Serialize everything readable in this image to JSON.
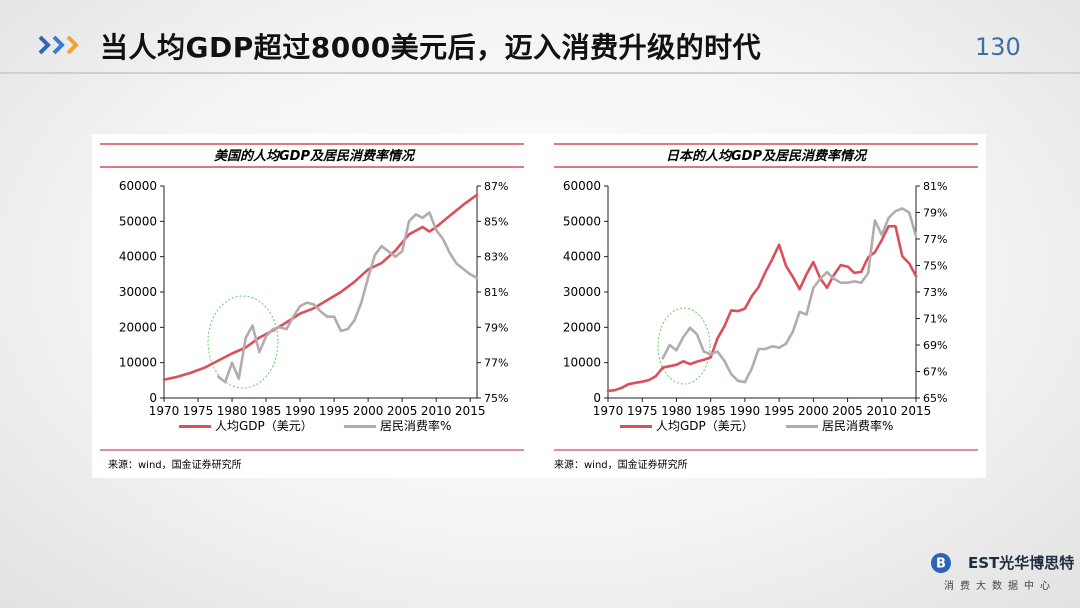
{
  "slide": {
    "title": "当人均GDP超过8000美元后，迈入消费升级的时代",
    "page_number": "130"
  },
  "brand": {
    "logo_text": "EST光华博思特",
    "subtitle": "消费大数据中心",
    "accent_color": "#3d6ea8"
  },
  "chart_data": [
    {
      "type": "line",
      "title": "美国的人均GDP及居民消费率情况",
      "source": "来源：wind，国金证券研究所",
      "x_ticks": [
        "1970",
        "1975",
        "1980",
        "1985",
        "1990",
        "1995",
        "2000",
        "2005",
        "2010",
        "2015"
      ],
      "xlim": [
        1970,
        2016
      ],
      "y_left_ticks": [
        "0",
        "10000",
        "20000",
        "30000",
        "40000",
        "50000",
        "60000"
      ],
      "ylim_left": [
        0,
        60000
      ],
      "y_right_ticks": [
        "75%",
        "77%",
        "79%",
        "81%",
        "83%",
        "85%",
        "87%"
      ],
      "ylim_right": [
        75,
        87
      ],
      "legend": [
        "人均GDP（美元）",
        "居民消费率%"
      ],
      "series": [
        {
          "name": "人均GDP（美元）",
          "axis": "left",
          "color": "#d9505a",
          "x": [
            1970,
            1972,
            1974,
            1976,
            1978,
            1980,
            1982,
            1984,
            1986,
            1988,
            1990,
            1992,
            1994,
            1996,
            1998,
            2000,
            2002,
            2004,
            2006,
            2008,
            2009,
            2010,
            2012,
            2014,
            2016
          ],
          "y": [
            5200,
            6000,
            7200,
            8600,
            10600,
            12600,
            14300,
            17100,
            19100,
            21400,
            23900,
            25400,
            27700,
            30000,
            32900,
            36400,
            38200,
            41700,
            46300,
            48400,
            47100,
            48400,
            51600,
            54700,
            57500
          ]
        },
        {
          "name": "居民消费率%",
          "axis": "right",
          "color": "#b5aaad",
          "x": [
            1978,
            1979,
            1980,
            1981,
            1982,
            1983,
            1984,
            1985,
            1986,
            1987,
            1988,
            1989,
            1990,
            1991,
            1992,
            1993,
            1994,
            1995,
            1996,
            1997,
            1998,
            1999,
            2000,
            2001,
            2002,
            2003,
            2004,
            2005,
            2006,
            2007,
            2008,
            2009,
            2010,
            2011,
            2012,
            2013,
            2014,
            2015,
            2016
          ],
          "y": [
            76.2,
            75.9,
            77.0,
            76.1,
            78.4,
            79.1,
            77.6,
            78.5,
            78.9,
            79.0,
            78.9,
            79.6,
            80.2,
            80.4,
            80.3,
            79.9,
            79.6,
            79.6,
            78.8,
            78.9,
            79.4,
            80.4,
            81.8,
            83.1,
            83.6,
            83.3,
            83.0,
            83.3,
            85.0,
            85.4,
            85.2,
            85.5,
            84.5,
            84.0,
            83.2,
            82.6,
            82.3,
            82.0,
            81.8
          ]
        }
      ]
    },
    {
      "type": "line",
      "title": "日本的人均GDP及居民消费率情况",
      "source": "来源：wind，国金证券研究所",
      "x_ticks": [
        "1970",
        "1975",
        "1980",
        "1985",
        "1990",
        "1995",
        "2000",
        "2005",
        "2010",
        "2015"
      ],
      "xlim": [
        1970,
        2015
      ],
      "y_left_ticks": [
        "0",
        "10000",
        "20000",
        "30000",
        "40000",
        "50000",
        "60000"
      ],
      "ylim_left": [
        0,
        60000
      ],
      "y_right_ticks": [
        "65%",
        "67%",
        "69%",
        "71%",
        "73%",
        "75%",
        "77%",
        "79%",
        "81%"
      ],
      "ylim_right": [
        65,
        81
      ],
      "legend": [
        "人均GDP（美元）",
        "居民消费率%"
      ],
      "series": [
        {
          "name": "人均GDP（美元）",
          "axis": "left",
          "color": "#d9505a",
          "x": [
            1970,
            1971,
            1972,
            1973,
            1974,
            1975,
            1976,
            1977,
            1978,
            1979,
            1980,
            1981,
            1982,
            1983,
            1984,
            1985,
            1986,
            1987,
            1988,
            1989,
            1990,
            1991,
            1992,
            1993,
            1994,
            1995,
            1996,
            1997,
            1998,
            1999,
            2000,
            2001,
            2002,
            2003,
            2004,
            2005,
            2006,
            2007,
            2008,
            2009,
            2010,
            2011,
            2012,
            2013,
            2014,
            2015
          ],
          "y": [
            2000,
            2200,
            2900,
            3900,
            4300,
            4600,
            5100,
            6200,
            8600,
            9000,
            9400,
            10400,
            9600,
            10300,
            10800,
            11500,
            16900,
            20300,
            24800,
            24600,
            25300,
            28800,
            31400,
            35600,
            39300,
            43400,
            37400,
            34300,
            30800,
            35000,
            38500,
            33900,
            31200,
            34800,
            37600,
            37200,
            35400,
            35700,
            39800,
            41300,
            44700,
            48600,
            48600,
            40100,
            38100,
            34500
          ]
        },
        {
          "name": "居民消费率%",
          "axis": "right",
          "color": "#b5aaad",
          "x": [
            1978,
            1979,
            1980,
            1981,
            1982,
            1983,
            1984,
            1985,
            1986,
            1987,
            1988,
            1989,
            1990,
            1991,
            1992,
            1993,
            1994,
            1995,
            1996,
            1997,
            1998,
            1999,
            2000,
            2001,
            2002,
            2003,
            2004,
            2005,
            2006,
            2007,
            2008,
            2009,
            2010,
            2011,
            2012,
            2013,
            2014,
            2015
          ],
          "y": [
            68.0,
            69.0,
            68.6,
            69.6,
            70.3,
            69.8,
            68.5,
            68.3,
            68.5,
            67.8,
            66.8,
            66.3,
            66.2,
            67.2,
            68.7,
            68.7,
            68.9,
            68.8,
            69.1,
            70.0,
            71.5,
            71.3,
            73.3,
            74.0,
            74.5,
            74.0,
            73.7,
            73.7,
            73.8,
            73.7,
            74.4,
            78.4,
            77.3,
            78.6,
            79.1,
            79.3,
            79.0,
            77.2
          ]
        }
      ]
    }
  ]
}
